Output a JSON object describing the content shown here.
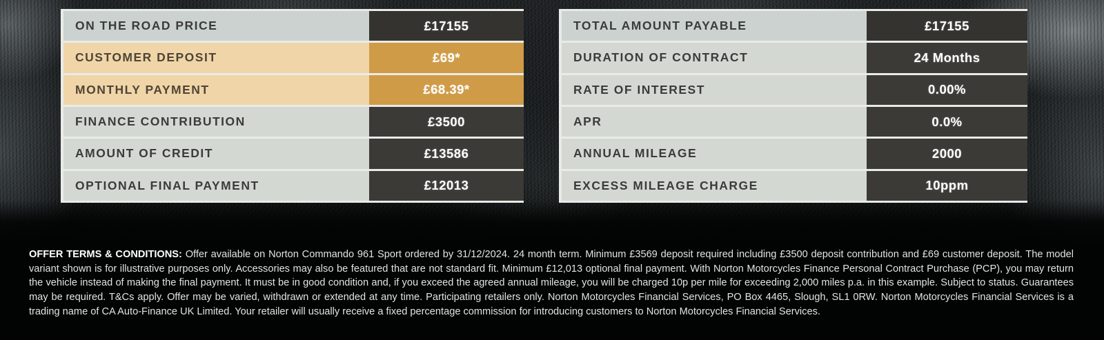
{
  "colors": {
    "accent_gold": "#cf9b47",
    "highlight_tan": "#f0d5a8",
    "cell_dark": "#3b3a37",
    "cell_gray": "#d4d8d3",
    "value_text": "#ffffff"
  },
  "left_table": {
    "rows": [
      {
        "label": "ON THE ROAD PRICE",
        "value": "£17155",
        "highlight": false
      },
      {
        "label": "CUSTOMER DEPOSIT",
        "value": "£69*",
        "highlight": true
      },
      {
        "label": "MONTHLY PAYMENT",
        "value": "£68.39*",
        "highlight": true
      },
      {
        "label": "FINANCE CONTRIBUTION",
        "value": "£3500",
        "highlight": false
      },
      {
        "label": "AMOUNT OF CREDIT",
        "value": "£13586",
        "highlight": false
      },
      {
        "label": "OPTIONAL FINAL PAYMENT",
        "value": "£12013",
        "highlight": false
      }
    ]
  },
  "right_table": {
    "rows": [
      {
        "label": "TOTAL AMOUNT PAYABLE",
        "value": "£17155",
        "highlight": false
      },
      {
        "label": "DURATION OF CONTRACT",
        "value": "24 Months",
        "highlight": false
      },
      {
        "label": "RATE OF INTEREST",
        "value": "0.00%",
        "highlight": false
      },
      {
        "label": "APR",
        "value": "0.0%",
        "highlight": false
      },
      {
        "label": "ANNUAL MILEAGE",
        "value": "2000",
        "highlight": false
      },
      {
        "label": "EXCESS MILEAGE CHARGE",
        "value": "10ppm",
        "highlight": false
      }
    ]
  },
  "terms": {
    "heading": "OFFER TERMS & CONDITIONS:",
    "body": "Offer available on Norton Commando 961 Sport ordered by 31/12/2024. 24 month term. Minimum £3569 deposit required including £3500 deposit contribution and £69 customer deposit. The model variant shown is for illustrative purposes only. Accessories may also be featured that are not standard fit. Minimum £12,013 optional final payment. With Norton Motorcycles Finance Personal Contract Purchase (PCP), you may return the vehicle instead of making the final payment. It must be in good condition and, if you exceed the agreed annual mileage, you will be charged 10p per mile for exceeding 2,000 miles p.a. in this example. Subject to status. Guarantees may be required. T&Cs apply. Offer may be varied, withdrawn or extended at any time. Participating retailers only. Norton Motorcycles Financial Services, PO Box 4465, Slough, SL1 0RW.  Norton Motorcycles Financial Services is a trading name of CA Auto-Finance UK Limited. Your retailer will usually receive a fixed percentage commission for introducing customers to Norton Motorcycles Financial Services."
  }
}
